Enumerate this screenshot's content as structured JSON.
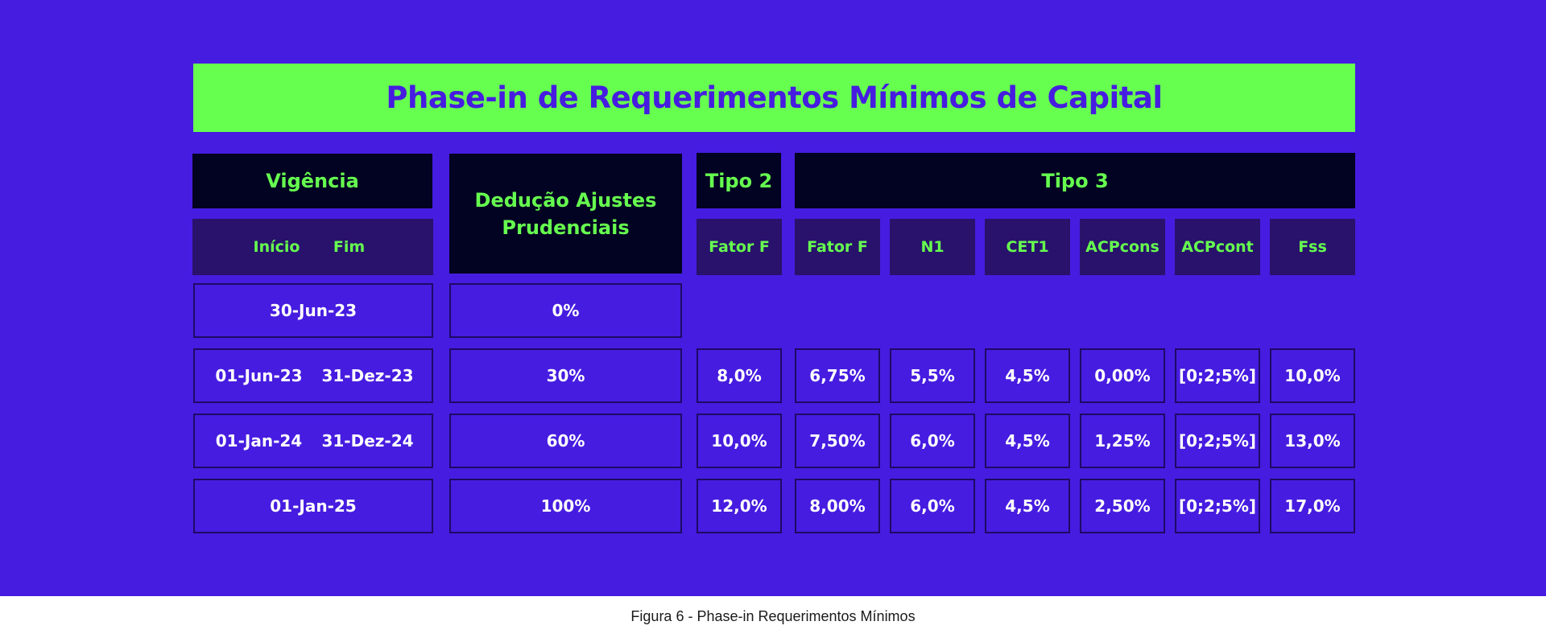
{
  "title": "Phase-in de Requerimentos Mínimos de Capital",
  "headers": {
    "vigencia": "Vigência",
    "inicio": "Início",
    "fim": "Fim",
    "deducao": "Dedução Ajustes Prudenciais",
    "tipo2": "Tipo 2",
    "tipo3": "Tipo 3",
    "tipo2_cols": [
      "Fator F"
    ],
    "tipo3_cols": [
      "Fator F",
      "N1",
      "CET1",
      "ACPcons",
      "ACPcont",
      "Fss"
    ]
  },
  "rows": [
    {
      "vigencia_single": "30-Jun-23",
      "deducao": "0%",
      "tipo2": [],
      "tipo3": []
    },
    {
      "inicio": "01-Jun-23",
      "fim": "31-Dez-23",
      "deducao": "30%",
      "tipo2": [
        "8,0%"
      ],
      "tipo3": [
        "6,75%",
        "5,5%",
        "4,5%",
        "0,00%",
        "[0;2;5%]",
        "10,0%"
      ]
    },
    {
      "inicio": "01-Jan-24",
      "fim": "31-Dez-24",
      "deducao": "60%",
      "tipo2": [
        "10,0%"
      ],
      "tipo3": [
        "7,50%",
        "6,0%",
        "4,5%",
        "1,25%",
        "[0;2;5%]",
        "13,0%"
      ]
    },
    {
      "vigencia_single": "01-Jan-25",
      "deducao": "100%",
      "tipo2": [
        "12,0%"
      ],
      "tipo3": [
        "8,00%",
        "6,0%",
        "4,5%",
        "2,50%",
        "[0;2;5%]",
        "17,0%"
      ]
    }
  ],
  "caption": "Figura 6 - Phase-in Requerimentos Mínimos",
  "colors": {
    "background": "#461CE0",
    "accent_green": "#66FF4F",
    "header_dark": "#020222",
    "subheader": "#28126B"
  }
}
